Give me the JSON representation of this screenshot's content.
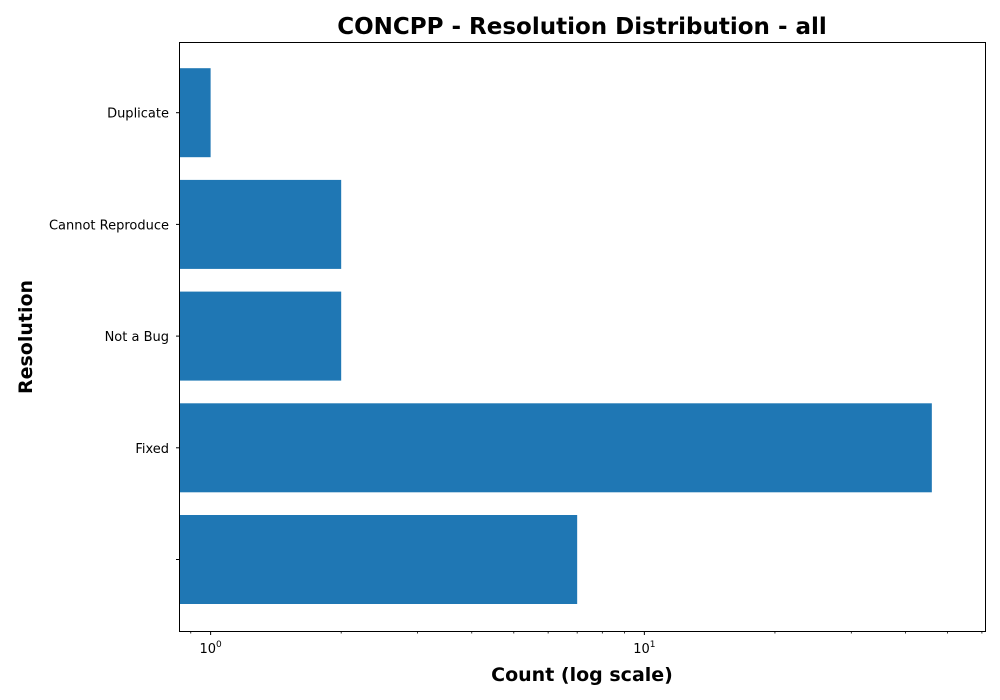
{
  "chart_data": {
    "type": "bar",
    "orientation": "horizontal",
    "title": "CONCPP - Resolution Distribution - all",
    "xlabel": "Count (log scale)",
    "ylabel": "Resolution",
    "x_scale": "log",
    "xlim": [
      0.85,
      61
    ],
    "x_major_ticks": [
      {
        "value": 1,
        "base": "10",
        "exp": "0"
      },
      {
        "value": 10,
        "base": "10",
        "exp": "1"
      }
    ],
    "categories": [
      "",
      "Fixed",
      "Not a Bug",
      "Cannot Reproduce",
      "Duplicate"
    ],
    "values": [
      7,
      46,
      2,
      2,
      1
    ],
    "colors": {
      "bar": "#1f77b4",
      "axis": "#000000",
      "background": "#ffffff"
    },
    "grid": false
  }
}
